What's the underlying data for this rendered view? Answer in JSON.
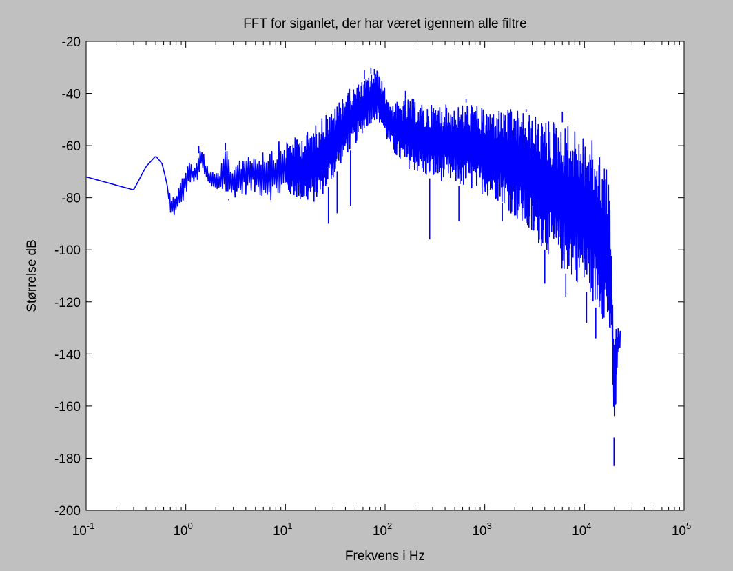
{
  "chart_data": {
    "type": "line",
    "title": "FFT for siganlet, der har været igennem alle filtre",
    "xlabel": "Frekvens i Hz",
    "ylabel": "Størrelse dB",
    "xscale": "log",
    "xlim": [
      0.1,
      100000
    ],
    "ylim": [
      -200,
      -20
    ],
    "x_ticks": [
      0.1,
      1,
      10,
      100,
      1000,
      10000,
      100000
    ],
    "x_tick_labels": [
      {
        "base": "10",
        "exp": "-1"
      },
      {
        "base": "10",
        "exp": "0"
      },
      {
        "base": "10",
        "exp": "1"
      },
      {
        "base": "10",
        "exp": "2"
      },
      {
        "base": "10",
        "exp": "3"
      },
      {
        "base": "10",
        "exp": "4"
      },
      {
        "base": "10",
        "exp": "5"
      }
    ],
    "y_ticks": [
      -200,
      -180,
      -160,
      -140,
      -120,
      -100,
      -80,
      -60,
      -40,
      -20
    ],
    "y_tick_labels": [
      "-200",
      "-180",
      "-160",
      "-140",
      "-120",
      "-100",
      "-80",
      "-60",
      "-40",
      "-20"
    ],
    "grid": false,
    "series": [
      {
        "color": "#0000ff",
        "x": [
          0.1,
          0.3,
          0.4,
          0.5,
          0.58,
          0.65,
          0.7,
          0.8,
          0.9,
          1.0,
          1.1,
          1.2,
          1.3,
          1.4,
          1.5,
          1.6,
          1.8,
          2.0,
          2.2,
          2.4,
          2.6,
          2.8,
          3.0,
          3.5,
          4.0,
          5.0,
          6.0,
          7.0,
          8.0,
          9.0,
          10.0,
          12,
          15,
          20,
          25,
          30,
          35,
          40,
          50,
          60,
          70,
          80,
          90,
          100,
          120,
          150,
          200,
          250,
          300,
          400,
          500,
          700,
          1000,
          1500,
          2000,
          2500,
          3000,
          4000,
          5000,
          7000,
          10000,
          12000,
          15000,
          17000,
          18000,
          19000,
          19500,
          20000,
          21000,
          22000,
          23000
        ],
        "y_upper": [
          -72,
          -77,
          -68,
          -64,
          -67,
          -75,
          -78,
          -77,
          -73,
          -67,
          -65,
          -68,
          -66,
          -60,
          -62,
          -66,
          -70,
          -70,
          -69,
          -64,
          -60,
          -68,
          -66,
          -64,
          -62,
          -62,
          -61,
          -60,
          -59,
          -58,
          -58,
          -57,
          -56,
          -52,
          -47,
          -47,
          -42,
          -39,
          -37,
          -35,
          -33,
          -30,
          -33,
          -38,
          -44,
          -42,
          -42,
          -45,
          -44,
          -44,
          -45,
          -43,
          -46,
          -46,
          -46,
          -47,
          -48,
          -50,
          -50,
          -52,
          -56,
          -58,
          -64,
          -68,
          -80,
          -110,
          -125,
          -130,
          -129,
          -130,
          -131
        ],
        "y_lower": [
          -72,
          -77,
          -68,
          -64,
          -67,
          -75,
          -88,
          -87,
          -84,
          -79,
          -75,
          -75,
          -74,
          -70,
          -71,
          -74,
          -77,
          -78,
          -77,
          -78,
          -80,
          -81,
          -80,
          -80,
          -79,
          -79,
          -80,
          -81,
          -81,
          -80,
          -79,
          -80,
          -82,
          -82,
          -78,
          -73,
          -68,
          -64,
          -60,
          -55,
          -52,
          -50,
          -52,
          -57,
          -63,
          -68,
          -70,
          -72,
          -73,
          -74,
          -75,
          -77,
          -79,
          -82,
          -88,
          -92,
          -96,
          -100,
          -106,
          -110,
          -115,
          -120,
          -126,
          -130,
          -135,
          -145,
          -160,
          -180,
          -150,
          -140,
          -139
        ],
        "dips": [
          {
            "x": 0.7,
            "y": -88
          },
          {
            "x": 2.7,
            "y": -81
          },
          {
            "x": 4.5,
            "y": -79
          },
          {
            "x": 27,
            "y": -90
          },
          {
            "x": 33,
            "y": -86
          },
          {
            "x": 45,
            "y": -83
          },
          {
            "x": 280,
            "y": -96
          },
          {
            "x": 550,
            "y": -89
          },
          {
            "x": 1500,
            "y": -89
          },
          {
            "x": 4000,
            "y": -113
          },
          {
            "x": 6500,
            "y": -118
          },
          {
            "x": 10500,
            "y": -128
          },
          {
            "x": 13000,
            "y": -134
          },
          {
            "x": 19800,
            "y": -183
          }
        ],
        "peaks": [
          {
            "x": 1.35,
            "y": -60
          },
          {
            "x": 2.5,
            "y": -59
          },
          {
            "x": 62,
            "y": -31
          },
          {
            "x": 72,
            "y": -30
          },
          {
            "x": 78,
            "y": -33
          },
          {
            "x": 160,
            "y": -39
          },
          {
            "x": 650,
            "y": -42
          },
          {
            "x": 2600,
            "y": -46
          },
          {
            "x": 6000,
            "y": -47
          }
        ]
      }
    ]
  }
}
